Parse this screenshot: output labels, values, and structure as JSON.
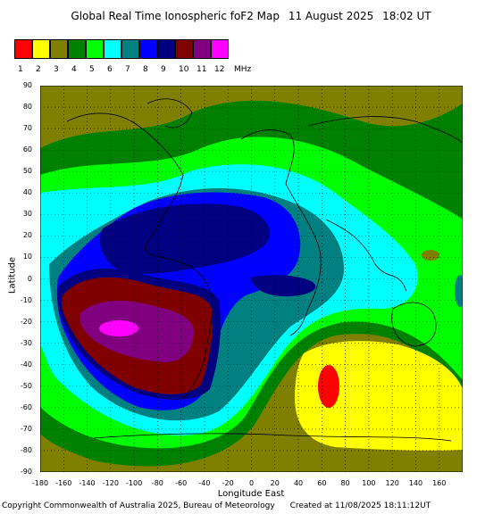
{
  "header": {
    "title": "Global Real Time Ionospheric foF2 Map",
    "date": "11 August 2025",
    "time": "18:02 UT"
  },
  "legend": {
    "unit": "MHz",
    "items": [
      {
        "label": "1",
        "color": "#ff0000"
      },
      {
        "label": "2",
        "color": "#ffff00"
      },
      {
        "label": "3",
        "color": "#808000"
      },
      {
        "label": "4",
        "color": "#008000"
      },
      {
        "label": "5",
        "color": "#00ff00"
      },
      {
        "label": "6",
        "color": "#00ffff"
      },
      {
        "label": "7",
        "color": "#008080"
      },
      {
        "label": "8",
        "color": "#0000ff"
      },
      {
        "label": "9",
        "color": "#000080"
      },
      {
        "label": "10",
        "color": "#800000"
      },
      {
        "label": "11",
        "color": "#800080"
      },
      {
        "label": "12",
        "color": "#ff00ff"
      }
    ]
  },
  "axes": {
    "ylabel": "Latitude",
    "xlabel": "Longitude East",
    "lat_ticks": [
      "90",
      "80",
      "70",
      "60",
      "50",
      "40",
      "30",
      "20",
      "10",
      "0",
      "-10",
      "-20",
      "-30",
      "-40",
      "-50",
      "-60",
      "-70",
      "-80",
      "-90"
    ],
    "lon_ticks": [
      "-180",
      "-160",
      "-140",
      "-120",
      "-100",
      "-80",
      "-60",
      "-40",
      "-20",
      "0",
      "20",
      "40",
      "60",
      "80",
      "100",
      "120",
      "140",
      "160"
    ],
    "lat_range": [
      -90,
      90
    ],
    "lon_range": [
      -180,
      180
    ]
  },
  "footer": {
    "copyright": "Copyright Commonwealth of Australia 2025, Bureau of Meteorology",
    "created": "Created at 11/08/2025 18:11:12UT"
  }
}
